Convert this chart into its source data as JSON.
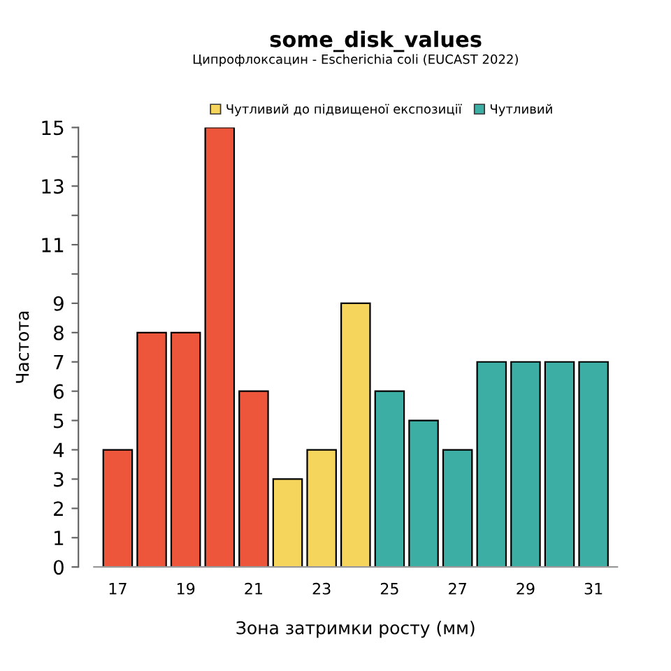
{
  "chart_data": {
    "type": "bar",
    "title": "some_disk_values",
    "subtitle": "Ципрофлоксацин - Escherichia coli (EUCAST 2022)",
    "xlabel": "Зона затримки росту (мм)",
    "ylabel": "Частота",
    "categories": [
      "17",
      null,
      "19",
      null,
      "21",
      null,
      "23",
      null,
      "25",
      null,
      "27",
      null,
      "29",
      null,
      "31"
    ],
    "series": [
      {
        "color": "#ee563b",
        "values": [
          4,
          8,
          8,
          15,
          6,
          null,
          null,
          null,
          null,
          null,
          null,
          null,
          null,
          null,
          null
        ]
      },
      {
        "name": "Чутливий до підвищеної експозиції",
        "color": "#f6d55c",
        "values": [
          null,
          null,
          null,
          null,
          null,
          3,
          4,
          9,
          null,
          null,
          null,
          null,
          null,
          null,
          null
        ]
      },
      {
        "name": "Чутливий",
        "color": "#3caea3",
        "values": [
          null,
          null,
          null,
          null,
          null,
          null,
          null,
          null,
          6,
          5,
          4,
          7,
          7,
          7,
          7
        ]
      }
    ],
    "ylim": [
      0,
      15
    ],
    "yticks": [
      0,
      1,
      2,
      3,
      4,
      5,
      6,
      7,
      8,
      9,
      {
        "value": 10,
        "label": null
      },
      11,
      {
        "value": 12,
        "label": null
      },
      13,
      {
        "value": 14,
        "label": null
      },
      15
    ],
    "grid": false,
    "legend": "top"
  }
}
